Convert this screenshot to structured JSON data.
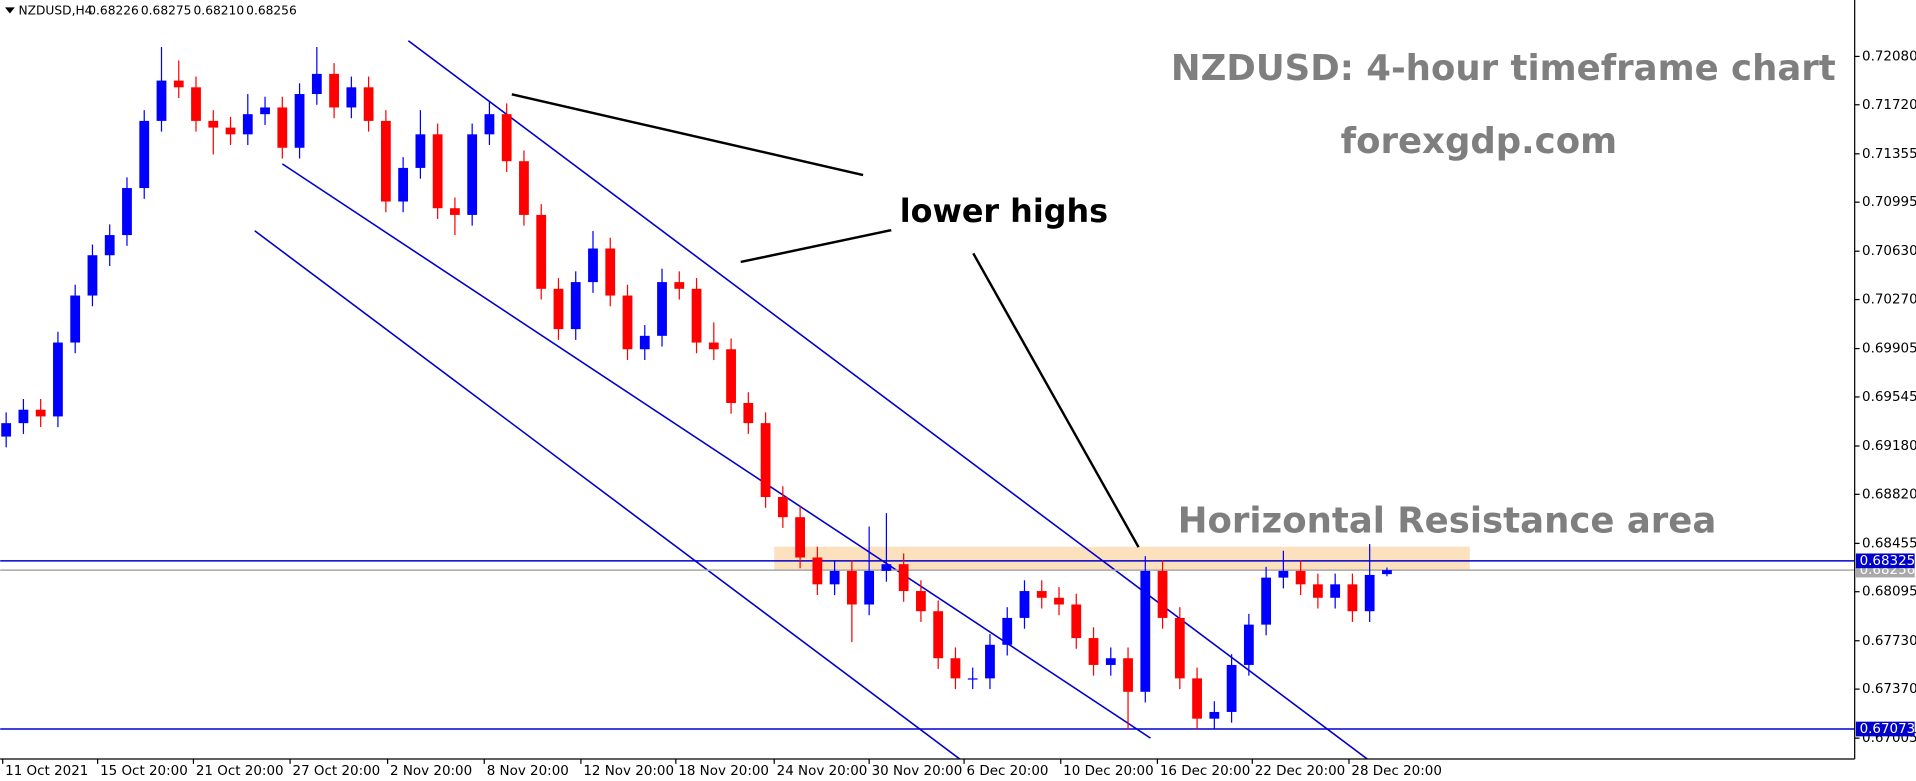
{
  "chart_data": {
    "type": "candlestick",
    "header": {
      "symbol": "NZDUSD,H4",
      "ohlc_labels": [
        "0.68226",
        "0.68275",
        "0.68210",
        "0.68256"
      ]
    },
    "title": "NZDUSD: 4-hour timeframe chart",
    "subtitle": "forexgdp.com",
    "annotations": [
      "lower highs",
      "Horizontal Resistance area"
    ],
    "up_color": "#0000ff",
    "down_color": "#ff0000",
    "open": [
      0.6925,
      0.6935,
      0.6945,
      0.694,
      0.6995,
      0.703,
      0.706,
      0.7075,
      0.711,
      0.716,
      0.719,
      0.7185,
      0.716,
      0.7155,
      0.715,
      0.7165,
      0.717,
      0.714,
      0.718,
      0.7195,
      0.717,
      0.7185,
      0.716,
      0.71,
      0.7125,
      0.715,
      0.7095,
      0.709,
      0.715,
      0.7165,
      0.713,
      0.709,
      0.7035,
      0.7005,
      0.704,
      0.7065,
      0.703,
      0.699,
      0.7,
      0.704,
      0.7035,
      0.6995,
      0.699,
      0.695,
      0.6935,
      0.688,
      0.6865,
      0.6835,
      0.6815,
      0.6825,
      0.68,
      0.6825,
      0.683,
      0.681,
      0.6795,
      0.676,
      0.6745,
      0.6745,
      0.677,
      0.679,
      0.681,
      0.6805,
      0.68,
      0.6775,
      0.6755,
      0.676,
      0.6735,
      0.6825,
      0.679,
      0.6745,
      0.6715,
      0.672,
      0.6755,
      0.6785,
      0.682,
      0.6825,
      0.6815,
      0.6805,
      0.6815,
      0.6795,
      0.68226
    ],
    "high": [
      0.6943,
      0.6953,
      0.6953,
      0.7003,
      0.7038,
      0.7068,
      0.7083,
      0.7118,
      0.7168,
      0.7215,
      0.7205,
      0.7193,
      0.7168,
      0.7163,
      0.718,
      0.7178,
      0.7178,
      0.7188,
      0.7215,
      0.7203,
      0.7193,
      0.7193,
      0.7168,
      0.7133,
      0.7168,
      0.7158,
      0.7103,
      0.7158,
      0.7175,
      0.7173,
      0.7138,
      0.7098,
      0.7043,
      0.7048,
      0.7078,
      0.7073,
      0.7038,
      0.7008,
      0.705,
      0.7048,
      0.7043,
      0.701,
      0.6998,
      0.6958,
      0.6943,
      0.6888,
      0.6873,
      0.6843,
      0.6833,
      0.6833,
      0.6858,
      0.6868,
      0.6838,
      0.6818,
      0.6803,
      0.6768,
      0.6753,
      0.6778,
      0.6798,
      0.6818,
      0.6818,
      0.6813,
      0.6808,
      0.6783,
      0.6768,
      0.6768,
      0.6836,
      0.6833,
      0.6798,
      0.6753,
      0.6728,
      0.6763,
      0.6793,
      0.6828,
      0.684,
      0.6833,
      0.6823,
      0.6823,
      0.6823,
      0.6845,
      0.68275
    ],
    "low": [
      0.6917,
      0.6927,
      0.6932,
      0.6932,
      0.6987,
      0.7022,
      0.7052,
      0.7067,
      0.7102,
      0.7152,
      0.7177,
      0.7152,
      0.7135,
      0.7142,
      0.7142,
      0.7157,
      0.7132,
      0.7132,
      0.7172,
      0.7162,
      0.7162,
      0.7152,
      0.7092,
      0.7092,
      0.7117,
      0.7087,
      0.7075,
      0.7082,
      0.7142,
      0.7122,
      0.7082,
      0.7027,
      0.6997,
      0.6997,
      0.7032,
      0.7022,
      0.6982,
      0.6982,
      0.6992,
      0.7027,
      0.6987,
      0.6982,
      0.6942,
      0.6927,
      0.6872,
      0.6857,
      0.6827,
      0.6807,
      0.6807,
      0.6772,
      0.6792,
      0.6817,
      0.6802,
      0.6787,
      0.6752,
      0.6737,
      0.6737,
      0.6737,
      0.6762,
      0.6782,
      0.6797,
      0.6792,
      0.6767,
      0.6747,
      0.6747,
      0.6707,
      0.6727,
      0.6782,
      0.6737,
      0.6707,
      0.6707,
      0.6712,
      0.6747,
      0.6777,
      0.6812,
      0.6807,
      0.6797,
      0.6797,
      0.6787,
      0.6787,
      0.6821
    ],
    "close": [
      0.6935,
      0.6945,
      0.694,
      0.6995,
      0.703,
      0.706,
      0.7075,
      0.711,
      0.716,
      0.719,
      0.7185,
      0.716,
      0.7155,
      0.715,
      0.7165,
      0.717,
      0.714,
      0.718,
      0.7195,
      0.717,
      0.7185,
      0.716,
      0.71,
      0.7125,
      0.715,
      0.7095,
      0.709,
      0.715,
      0.7165,
      0.713,
      0.709,
      0.7035,
      0.7005,
      0.704,
      0.7065,
      0.703,
      0.699,
      0.7,
      0.704,
      0.7035,
      0.6995,
      0.699,
      0.695,
      0.6935,
      0.688,
      0.6865,
      0.6835,
      0.6815,
      0.6825,
      0.68,
      0.6825,
      0.683,
      0.681,
      0.6795,
      0.676,
      0.6745,
      0.6745,
      0.677,
      0.679,
      0.681,
      0.6805,
      0.68,
      0.6775,
      0.6755,
      0.676,
      0.6735,
      0.6825,
      0.679,
      0.6745,
      0.6715,
      0.672,
      0.6755,
      0.6785,
      0.682,
      0.6825,
      0.6815,
      0.6805,
      0.6815,
      0.6795,
      0.6822,
      0.68256
    ],
    "xlim": [
      -0.35,
      107.1
    ],
    "ylim": [
      0.6685,
      0.725
    ],
    "xticks": [
      {
        "value": -0.2,
        "label": "11 Oct 2021"
      },
      {
        "value": 5.3,
        "label": "15 Oct 20:00"
      },
      {
        "value": 10.85,
        "label": "21 Oct 20:00"
      },
      {
        "value": 16.45,
        "label": "27 Oct 20:00"
      },
      {
        "value": 22.1,
        "label": "2 Nov 20:00"
      },
      {
        "value": 27.7,
        "label": "8 Nov 20:00"
      },
      {
        "value": 33.3,
        "label": "12 Nov 20:00"
      },
      {
        "value": 38.8,
        "label": "18 Nov 20:00"
      },
      {
        "value": 44.5,
        "label": "24 Nov 20:00"
      },
      {
        "value": 50.0,
        "label": "30 Nov 20:00"
      },
      {
        "value": 55.5,
        "label": "6 Dec 20:00"
      },
      {
        "value": 61.1,
        "label": "10 Dec 20:00"
      },
      {
        "value": 66.7,
        "label": "16 Dec 20:00"
      },
      {
        "value": 72.2,
        "label": "22 Dec 20:00"
      },
      {
        "value": 77.8,
        "label": "28 Dec 20:00"
      }
    ],
    "yticks": [
      {
        "value": 0.7208,
        "label": "0.72080"
      },
      {
        "value": 0.7172,
        "label": "0.71720"
      },
      0.71355,
      0.70995,
      {
        "value": 0.7063,
        "label": "0.70630"
      },
      {
        "value": 0.7027,
        "label": "0.70270"
      },
      0.69905,
      0.69545,
      {
        "value": 0.6918,
        "label": "0.69180"
      },
      {
        "value": 0.6882,
        "label": "0.68820"
      },
      0.68455,
      0.68095,
      {
        "value": 0.6773,
        "label": "0.67730"
      },
      {
        "value": 0.6737,
        "label": "0.67370"
      },
      0.67005
    ],
    "hlines": [
      {
        "value": 0.68256,
        "color": "#a9a9a9"
      },
      {
        "value": 0.68325,
        "color": "#0000cd"
      },
      {
        "value": 0.67073,
        "color": "#0000cd"
      }
    ],
    "zone": {
      "x": [
        44.5,
        84.8
      ],
      "y": [
        0.6825,
        0.6843
      ],
      "color": "#fcdcb4"
    },
    "trendlines": [
      {
        "x": [
          23.3,
          83.0
        ],
        "y": [
          0.72197,
          0.66451
        ],
        "color": "#0000cd"
      },
      {
        "x": [
          16.0,
          66.3
        ],
        "y": [
          0.7128,
          0.67005
        ],
        "color": "#0000cd"
      },
      {
        "x": [
          14.4,
          59.4
        ],
        "y": [
          0.70782,
          0.6645
        ],
        "color": "#0000cd"
      }
    ]
  }
}
